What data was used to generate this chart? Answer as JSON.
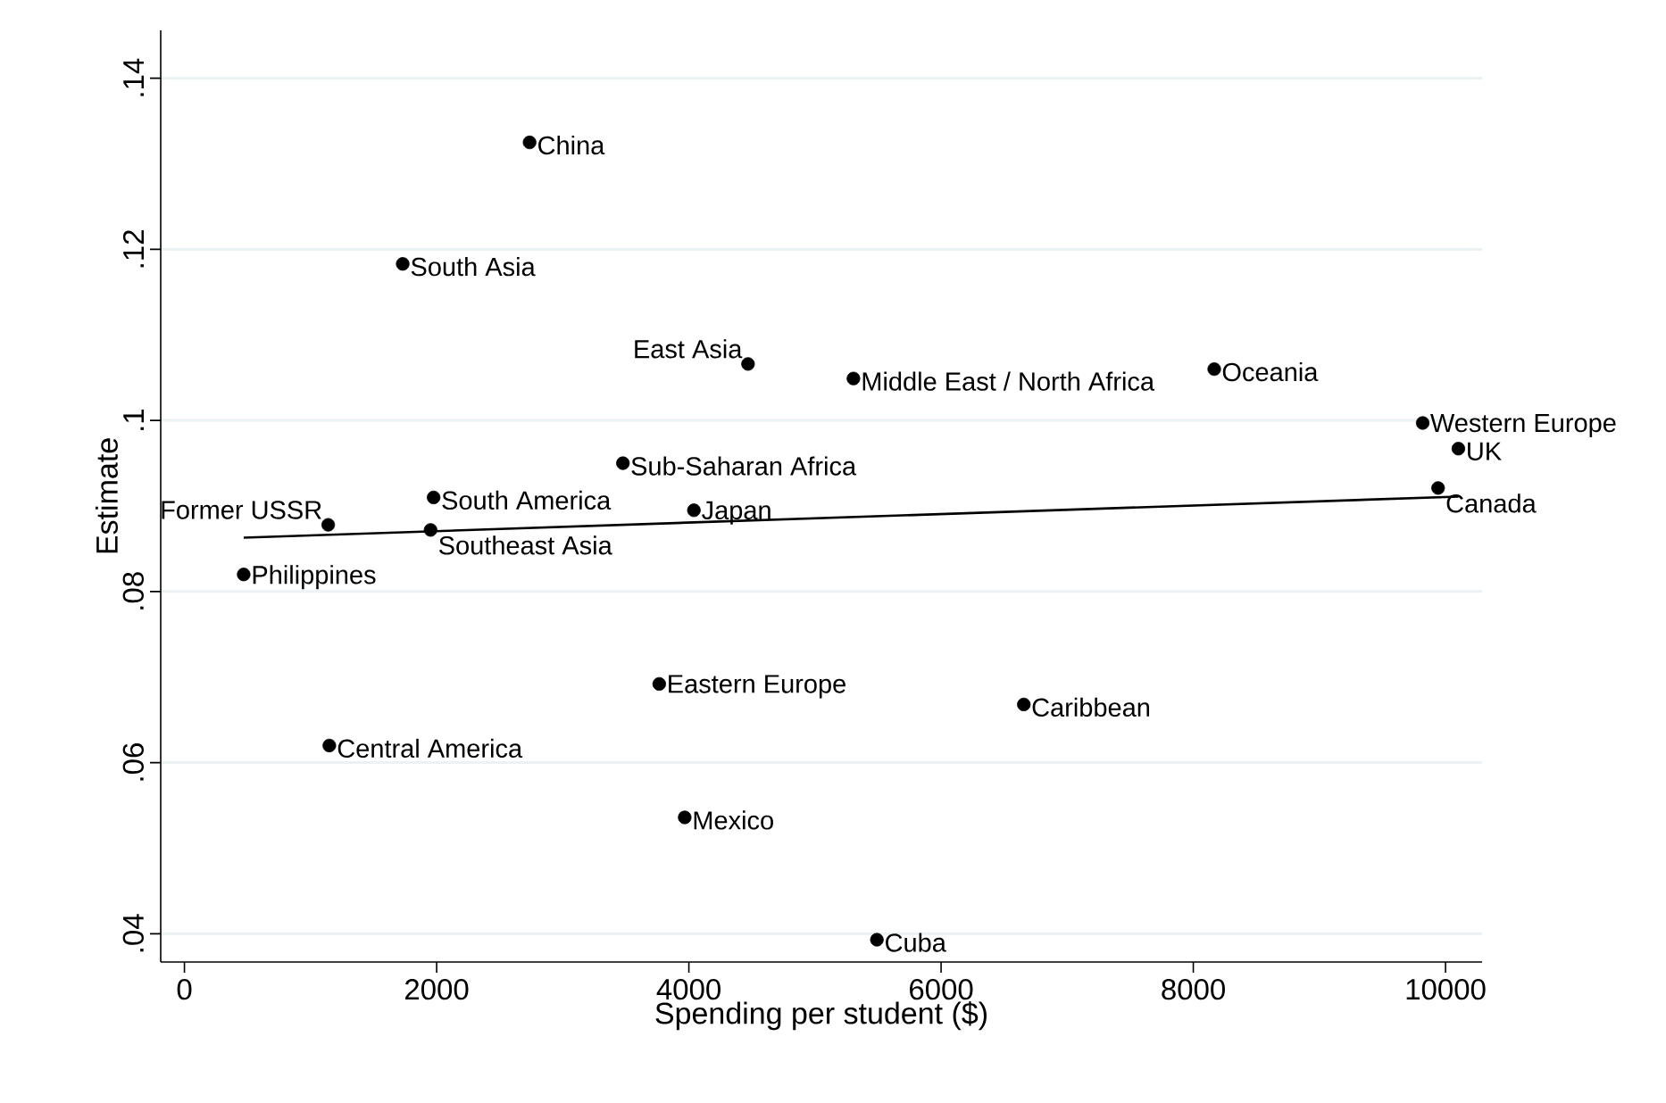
{
  "chart_data": {
    "type": "scatter",
    "xlabel": "Spending per student ($)",
    "ylabel": "Estimate",
    "xlim": [
      -188,
      10290
    ],
    "ylim": [
      0.0367,
      0.1456
    ],
    "xticks": [
      0,
      2000,
      4000,
      6000,
      8000,
      10000
    ],
    "yticks": [
      {
        "value": 0.04,
        "label": ".04"
      },
      {
        "value": 0.06,
        "label": ".06"
      },
      {
        "value": 0.08,
        "label": ".08"
      },
      {
        "value": 0.1,
        "label": ".1"
      },
      {
        "value": 0.12,
        "label": ".12"
      },
      {
        "value": 0.14,
        "label": ".14"
      }
    ],
    "grid": "y",
    "series": [
      {
        "type": "scatter",
        "color": "#000000",
        "marker": "circle",
        "x": [
          2737,
          1731,
          4469,
          5305,
          8166,
          9819,
          10102,
          9941,
          3477,
          1976,
          4040,
          1140,
          1952,
          470,
          3765,
          6656,
          1149,
          3967,
          5491
        ],
        "values": [
          0.1325,
          0.1183,
          0.1066,
          0.1049,
          0.106,
          0.0997,
          0.0967,
          0.0921,
          0.095,
          0.091,
          0.0895,
          0.0878,
          0.0872,
          0.082,
          0.0692,
          0.0668,
          0.062,
          0.0536,
          0.0393
        ]
      },
      {
        "type": "line",
        "color": "#000000",
        "line_style": "solid",
        "marker": "none",
        "x": [
          470,
          10102
        ],
        "values": [
          0.0863,
          0.0911
        ]
      }
    ],
    "annotations": [
      {
        "text": "China",
        "x": 2737,
        "y": 0.1325
      },
      {
        "text": "South Asia",
        "x": 1731,
        "y": 0.1183
      },
      {
        "text": "East Asia",
        "x": 4469,
        "y": 0.1066
      },
      {
        "text": "Middle East / North Africa",
        "x": 5305,
        "y": 0.1049
      },
      {
        "text": "Oceania",
        "x": 8166,
        "y": 0.106
      },
      {
        "text": "Western Europe",
        "x": 9819,
        "y": 0.0997
      },
      {
        "text": "UK",
        "x": 10102,
        "y": 0.0967
      },
      {
        "text": "Canada",
        "x": 9941,
        "y": 0.0921
      },
      {
        "text": "Sub-Saharan Africa",
        "x": 3477,
        "y": 0.095
      },
      {
        "text": "South America",
        "x": 1976,
        "y": 0.091
      },
      {
        "text": "Japan",
        "x": 4040,
        "y": 0.0895
      },
      {
        "text": "Former USSR",
        "x": 1140,
        "y": 0.0878
      },
      {
        "text": "Southeast Asia",
        "x": 1952,
        "y": 0.0872
      },
      {
        "text": "Philippines",
        "x": 470,
        "y": 0.082
      },
      {
        "text": "Eastern Europe",
        "x": 3765,
        "y": 0.0692
      },
      {
        "text": "Caribbean",
        "x": 6656,
        "y": 0.0668
      },
      {
        "text": "Central America",
        "x": 1149,
        "y": 0.062
      },
      {
        "text": "Mexico",
        "x": 3967,
        "y": 0.0536
      },
      {
        "text": "Cuba",
        "x": 5491,
        "y": 0.0393
      }
    ]
  }
}
